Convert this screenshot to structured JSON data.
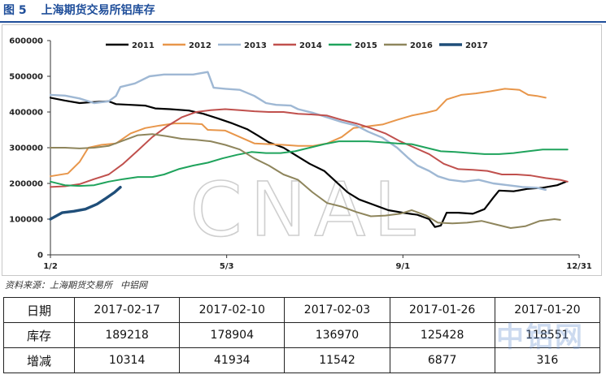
{
  "figure": {
    "number": "图 5",
    "title": "上海期货交易所铝库存"
  },
  "chart_data": {
    "type": "line",
    "title": "上海期货交易所铝库存",
    "xlabel": "",
    "ylabel": "",
    "x_ticks": [
      "1/2",
      "5/3",
      "9/1",
      "12/31"
    ],
    "x_domain_days": [
      0,
      363
    ],
    "y_ticks": [
      0,
      100000,
      200000,
      300000,
      400000,
      500000,
      600000
    ],
    "ylim": [
      0,
      600000
    ],
    "grid": false,
    "legend_position": "top",
    "watermark": "CNAL",
    "series": [
      {
        "name": "2011",
        "color": "#000000",
        "width": 2.2,
        "points": [
          [
            0,
            440000
          ],
          [
            10,
            432000
          ],
          [
            20,
            425000
          ],
          [
            30,
            428000
          ],
          [
            40,
            430000
          ],
          [
            45,
            422000
          ],
          [
            55,
            420000
          ],
          [
            65,
            418000
          ],
          [
            72,
            410000
          ],
          [
            82,
            408000
          ],
          [
            95,
            404000
          ],
          [
            105,
            395000
          ],
          [
            115,
            382000
          ],
          [
            125,
            368000
          ],
          [
            135,
            352000
          ],
          [
            142,
            335000
          ],
          [
            150,
            315000
          ],
          [
            160,
            300000
          ],
          [
            168,
            280000
          ],
          [
            178,
            255000
          ],
          [
            188,
            235000
          ],
          [
            196,
            205000
          ],
          [
            204,
            175000
          ],
          [
            212,
            155000
          ],
          [
            222,
            140000
          ],
          [
            232,
            125000
          ],
          [
            242,
            118000
          ],
          [
            252,
            112000
          ],
          [
            260,
            100000
          ],
          [
            264,
            78000
          ],
          [
            268,
            82000
          ],
          [
            272,
            118000
          ],
          [
            280,
            118000
          ],
          [
            290,
            115000
          ],
          [
            298,
            128000
          ],
          [
            304,
            160000
          ],
          [
            308,
            180000
          ],
          [
            318,
            178000
          ],
          [
            328,
            185000
          ],
          [
            338,
            188000
          ],
          [
            348,
            195000
          ],
          [
            354,
            205000
          ]
        ]
      },
      {
        "name": "2012",
        "color": "#e8964a",
        "width": 2,
        "points": [
          [
            0,
            220000
          ],
          [
            12,
            228000
          ],
          [
            20,
            260000
          ],
          [
            26,
            300000
          ],
          [
            35,
            308000
          ],
          [
            45,
            312000
          ],
          [
            55,
            340000
          ],
          [
            65,
            355000
          ],
          [
            75,
            362000
          ],
          [
            85,
            368000
          ],
          [
            95,
            368000
          ],
          [
            104,
            366000
          ],
          [
            108,
            350000
          ],
          [
            120,
            348000
          ],
          [
            130,
            330000
          ],
          [
            140,
            312000
          ],
          [
            150,
            310000
          ],
          [
            160,
            308000
          ],
          [
            170,
            305000
          ],
          [
            180,
            305000
          ],
          [
            190,
            312000
          ],
          [
            200,
            330000
          ],
          [
            208,
            355000
          ],
          [
            218,
            360000
          ],
          [
            228,
            365000
          ],
          [
            238,
            378000
          ],
          [
            248,
            390000
          ],
          [
            258,
            398000
          ],
          [
            265,
            405000
          ],
          [
            272,
            435000
          ],
          [
            282,
            448000
          ],
          [
            292,
            452000
          ],
          [
            302,
            458000
          ],
          [
            312,
            465000
          ],
          [
            322,
            462000
          ],
          [
            328,
            448000
          ],
          [
            334,
            445000
          ],
          [
            340,
            440000
          ]
        ]
      },
      {
        "name": "2013",
        "color": "#9fb8d4",
        "width": 2.4,
        "points": [
          [
            0,
            448000
          ],
          [
            10,
            446000
          ],
          [
            20,
            438000
          ],
          [
            30,
            425000
          ],
          [
            40,
            430000
          ],
          [
            45,
            445000
          ],
          [
            48,
            470000
          ],
          [
            58,
            480000
          ],
          [
            68,
            500000
          ],
          [
            78,
            505000
          ],
          [
            88,
            505000
          ],
          [
            98,
            505000
          ],
          [
            108,
            512000
          ],
          [
            112,
            468000
          ],
          [
            120,
            465000
          ],
          [
            130,
            462000
          ],
          [
            140,
            445000
          ],
          [
            148,
            425000
          ],
          [
            155,
            420000
          ],
          [
            165,
            418000
          ],
          [
            170,
            408000
          ],
          [
            180,
            398000
          ],
          [
            190,
            385000
          ],
          [
            200,
            372000
          ],
          [
            210,
            362000
          ],
          [
            218,
            345000
          ],
          [
            228,
            328000
          ],
          [
            238,
            300000
          ],
          [
            246,
            270000
          ],
          [
            252,
            250000
          ],
          [
            260,
            235000
          ],
          [
            266,
            220000
          ],
          [
            274,
            210000
          ],
          [
            284,
            205000
          ],
          [
            294,
            210000
          ],
          [
            304,
            200000
          ],
          [
            314,
            195000
          ],
          [
            324,
            190000
          ],
          [
            334,
            188000
          ],
          [
            340,
            182000
          ]
        ]
      },
      {
        "name": "2014",
        "color": "#c0504d",
        "width": 2,
        "points": [
          [
            0,
            190000
          ],
          [
            10,
            192000
          ],
          [
            20,
            198000
          ],
          [
            30,
            212000
          ],
          [
            40,
            225000
          ],
          [
            50,
            255000
          ],
          [
            60,
            292000
          ],
          [
            70,
            330000
          ],
          [
            80,
            360000
          ],
          [
            90,
            385000
          ],
          [
            100,
            400000
          ],
          [
            110,
            405000
          ],
          [
            120,
            408000
          ],
          [
            130,
            405000
          ],
          [
            140,
            402000
          ],
          [
            150,
            400000
          ],
          [
            160,
            400000
          ],
          [
            170,
            395000
          ],
          [
            180,
            393000
          ],
          [
            190,
            390000
          ],
          [
            200,
            378000
          ],
          [
            210,
            368000
          ],
          [
            220,
            355000
          ],
          [
            230,
            340000
          ],
          [
            240,
            318000
          ],
          [
            250,
            300000
          ],
          [
            260,
            282000
          ],
          [
            270,
            255000
          ],
          [
            280,
            240000
          ],
          [
            290,
            238000
          ],
          [
            300,
            235000
          ],
          [
            310,
            225000
          ],
          [
            320,
            225000
          ],
          [
            330,
            222000
          ],
          [
            340,
            215000
          ],
          [
            350,
            210000
          ],
          [
            355,
            205000
          ]
        ]
      },
      {
        "name": "2015",
        "color": "#1fa35c",
        "width": 2,
        "points": [
          [
            0,
            205000
          ],
          [
            10,
            195000
          ],
          [
            20,
            193000
          ],
          [
            30,
            195000
          ],
          [
            40,
            205000
          ],
          [
            50,
            212000
          ],
          [
            60,
            218000
          ],
          [
            70,
            218000
          ],
          [
            78,
            225000
          ],
          [
            88,
            240000
          ],
          [
            98,
            250000
          ],
          [
            108,
            258000
          ],
          [
            118,
            270000
          ],
          [
            128,
            280000
          ],
          [
            138,
            288000
          ],
          [
            148,
            285000
          ],
          [
            158,
            285000
          ],
          [
            168,
            290000
          ],
          [
            178,
            300000
          ],
          [
            188,
            310000
          ],
          [
            198,
            318000
          ],
          [
            208,
            318000
          ],
          [
            218,
            318000
          ],
          [
            228,
            315000
          ],
          [
            238,
            312000
          ],
          [
            248,
            310000
          ],
          [
            258,
            300000
          ],
          [
            268,
            290000
          ],
          [
            278,
            288000
          ],
          [
            288,
            285000
          ],
          [
            298,
            282000
          ],
          [
            308,
            282000
          ],
          [
            318,
            285000
          ],
          [
            328,
            290000
          ],
          [
            338,
            295000
          ],
          [
            348,
            295000
          ],
          [
            355,
            295000
          ]
        ]
      },
      {
        "name": "2016",
        "color": "#8e855c",
        "width": 2,
        "points": [
          [
            0,
            300000
          ],
          [
            10,
            300000
          ],
          [
            20,
            298000
          ],
          [
            30,
            300000
          ],
          [
            40,
            305000
          ],
          [
            50,
            320000
          ],
          [
            60,
            335000
          ],
          [
            70,
            338000
          ],
          [
            80,
            332000
          ],
          [
            90,
            325000
          ],
          [
            100,
            322000
          ],
          [
            110,
            318000
          ],
          [
            120,
            308000
          ],
          [
            130,
            295000
          ],
          [
            140,
            270000
          ],
          [
            150,
            250000
          ],
          [
            160,
            225000
          ],
          [
            170,
            210000
          ],
          [
            180,
            175000
          ],
          [
            190,
            145000
          ],
          [
            200,
            135000
          ],
          [
            210,
            120000
          ],
          [
            220,
            108000
          ],
          [
            230,
            110000
          ],
          [
            240,
            115000
          ],
          [
            248,
            125000
          ],
          [
            258,
            110000
          ],
          [
            266,
            90000
          ],
          [
            276,
            88000
          ],
          [
            286,
            90000
          ],
          [
            296,
            95000
          ],
          [
            306,
            85000
          ],
          [
            316,
            75000
          ],
          [
            326,
            80000
          ],
          [
            336,
            95000
          ],
          [
            346,
            100000
          ],
          [
            350,
            98000
          ]
        ]
      },
      {
        "name": "2017",
        "color": "#1f4e79",
        "width": 3.4,
        "points": [
          [
            0,
            100000
          ],
          [
            8,
            118000
          ],
          [
            16,
            122000
          ],
          [
            24,
            128000
          ],
          [
            32,
            142000
          ],
          [
            38,
            158000
          ],
          [
            44,
            175000
          ],
          [
            48,
            189218
          ]
        ]
      }
    ]
  },
  "source": {
    "label": "资料来源：上海期货交易所",
    "org": "中铝网"
  },
  "table": {
    "header_label": "日期",
    "dates": [
      "2017-02-17",
      "2017-02-10",
      "2017-02-03",
      "2017-01-26",
      "2017-01-20"
    ],
    "rows": [
      {
        "label": "库存",
        "values": [
          "189218",
          "178904",
          "136970",
          "125428",
          "118551"
        ]
      },
      {
        "label": "增减",
        "values": [
          "10314",
          "41934",
          "11542",
          "6877",
          "316"
        ]
      }
    ]
  },
  "watermark_text": "中铝网"
}
